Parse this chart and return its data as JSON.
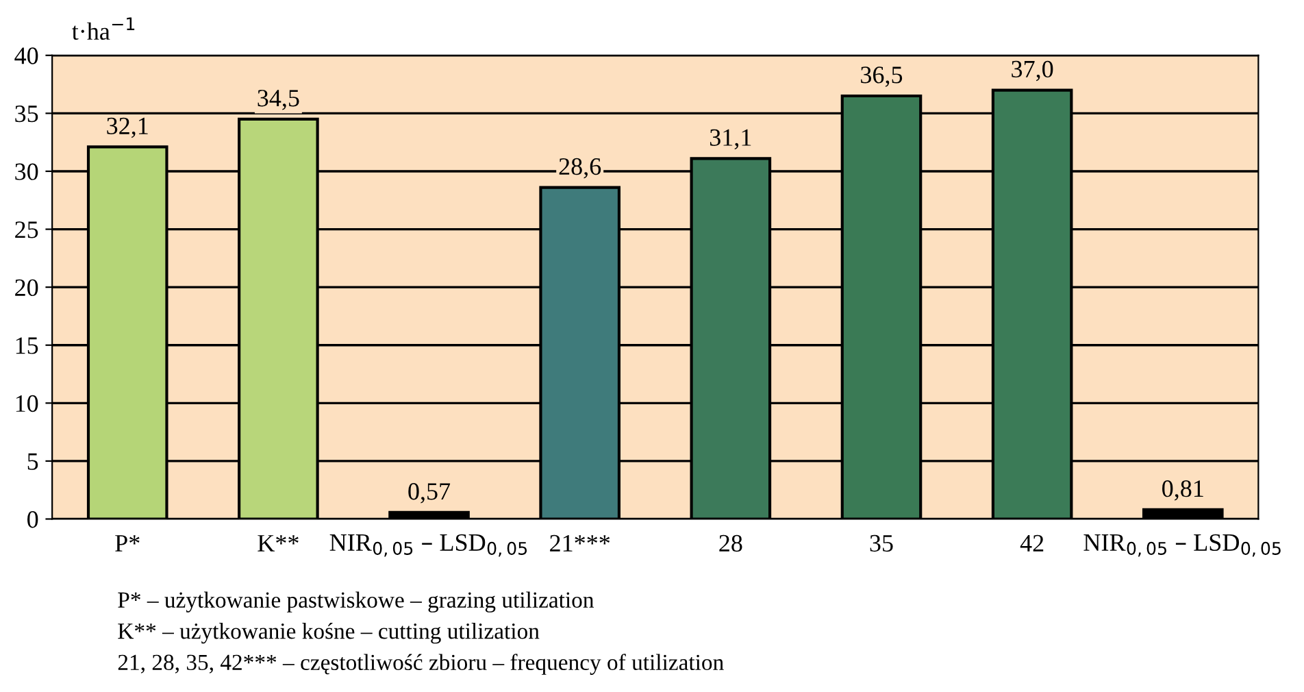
{
  "chart_data": {
    "type": "bar",
    "ylabel": "t·ha$^{−1}$",
    "categories": [
      "P*",
      "K**",
      "NIR$_{0,05}$ – LSD$_{0,05}$",
      "21***",
      "28",
      "35",
      "42",
      "NIR$_{0,05}$ – LSD$_{0,05}$"
    ],
    "values": [
      32.1,
      34.5,
      0.57,
      28.6,
      31.1,
      36.5,
      37.0,
      0.81
    ],
    "value_labels": [
      "32,1",
      "34,5",
      "0,57",
      "28,6",
      "31,1",
      "36,5",
      "37,0",
      "0,81"
    ],
    "colors": [
      "#b5d577",
      "#b8d67a",
      "#000000",
      "#3f7b7b",
      "#3c7a5a",
      "#3a7a55",
      "#3b7b57",
      "#000000"
    ],
    "ylim": [
      0,
      40
    ],
    "yticks": [
      0,
      5,
      10,
      15,
      20,
      25,
      30,
      35,
      40
    ],
    "grid": "y",
    "legend": false,
    "annotations": [
      "P* – użytkowanie pastwiskowe – grazing utilization",
      "K** – użytkowanie kośne – cutting utilization",
      "21, 28, 35, 42*** – częstotliwość zbioru – frequency of utilization"
    ]
  }
}
